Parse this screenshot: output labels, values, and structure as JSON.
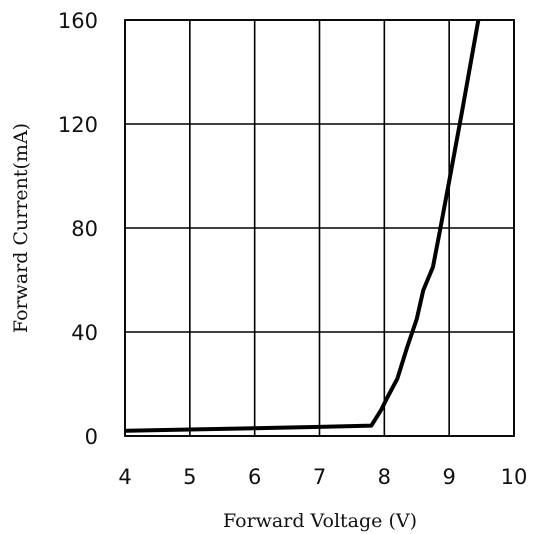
{
  "chart_data": {
    "type": "line",
    "title": "",
    "xlabel": "Forward Voltage (V)",
    "ylabel": "Forward Current(mA)",
    "xlim": [
      4,
      10
    ],
    "ylim": [
      0,
      160
    ],
    "xticks": [
      "4",
      "5",
      "6",
      "7",
      "8",
      "9",
      "10"
    ],
    "yticks": [
      "0",
      "40",
      "80",
      "120",
      "160"
    ],
    "grid": true,
    "series": [
      {
        "color": "#000000",
        "points": [
          {
            "x": 4.0,
            "y": 2
          },
          {
            "x": 5.0,
            "y": 2.5
          },
          {
            "x": 6.0,
            "y": 3
          },
          {
            "x": 7.0,
            "y": 3.5
          },
          {
            "x": 7.8,
            "y": 4
          },
          {
            "x": 7.95,
            "y": 10
          },
          {
            "x": 8.05,
            "y": 15
          },
          {
            "x": 8.2,
            "y": 22
          },
          {
            "x": 8.35,
            "y": 34
          },
          {
            "x": 8.5,
            "y": 45
          },
          {
            "x": 8.6,
            "y": 56
          },
          {
            "x": 8.75,
            "y": 65
          },
          {
            "x": 8.85,
            "y": 78
          },
          {
            "x": 9.0,
            "y": 98
          },
          {
            "x": 9.2,
            "y": 125
          },
          {
            "x": 9.45,
            "y": 160
          }
        ]
      }
    ]
  }
}
